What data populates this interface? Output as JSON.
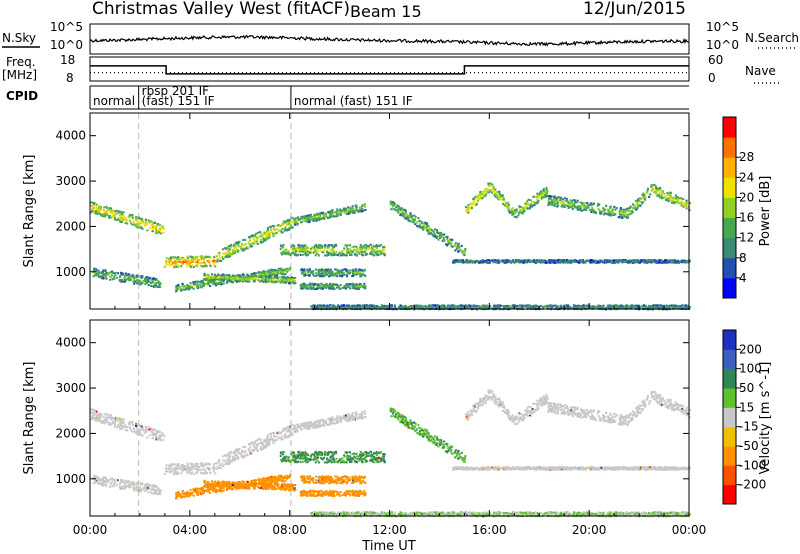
{
  "header": {
    "title": "Christmas Valley West (fitACF)",
    "beam": "Beam 15",
    "date": "12/Jun/2015"
  },
  "chart_data": {
    "type": "heatmap",
    "x_axis": {
      "label": "Time UT",
      "range_hours": [
        0,
        24
      ],
      "ticks": [
        "00:00",
        "04:00",
        "08:00",
        "12:00",
        "16:00",
        "20:00",
        "00:00"
      ],
      "tick_hours": [
        0,
        4,
        8,
        12,
        16,
        20,
        24
      ]
    },
    "y_axis": {
      "label": "Slant Range [km]",
      "range_km": [
        180,
        4500
      ],
      "ticks": [
        1000,
        2000,
        3000,
        4000
      ]
    },
    "noise_panel": {
      "left_label": "N.Sky",
      "right_label": "N.Search",
      "tick_labels": [
        "10^5",
        "10^0"
      ],
      "tick_exponents": [
        5,
        0
      ]
    },
    "freq_panel": {
      "left_label": "Freq.",
      "left_unit": "[MHz]",
      "left_ticks": [
        18,
        8
      ],
      "right_label": "Nave",
      "right_ticks": [
        60,
        0
      ],
      "frequency_steps": [
        {
          "start": 0,
          "end": 3.05,
          "mhz": 14.7
        },
        {
          "start": 3.05,
          "end": 15.0,
          "mhz": 10.3
        },
        {
          "start": 15.0,
          "end": 24,
          "mhz": 14.7
        }
      ],
      "nave_dotted_level": 18
    },
    "cpid": {
      "label": "CPID",
      "segments": [
        {
          "start": 0.0,
          "label": "normal",
          "row": 2
        },
        {
          "start": 1.95,
          "label": "rbsp 201 IF",
          "row": 1
        },
        {
          "start": 1.95,
          "label": "(fast) 151 IF",
          "row": 2
        },
        {
          "start": 8.05,
          "label": "normal (fast) 151 IF",
          "row": 2
        }
      ],
      "dividers_hours": [
        1.95,
        8.05
      ]
    },
    "power_panel": {
      "colorbar_label": "Power [dB]",
      "colorbar_ticks": [
        4,
        8,
        12,
        16,
        20,
        24,
        28
      ],
      "colors": [
        "#0000ff",
        "#2050b0",
        "#3a8a78",
        "#48a850",
        "#90d020",
        "#f0e000",
        "#ffb000",
        "#ff7000",
        "#ff0000"
      ]
    },
    "velocity_panel": {
      "colorbar_label": "Velocity [m s^-1]",
      "colorbar_ticks": [
        "200",
        "100",
        "50",
        "15",
        "-15",
        "-50",
        "-100",
        "-200"
      ],
      "colors": [
        "#2030c0",
        "#3a60c0",
        "#308850",
        "#60c030",
        "#c8c8c8",
        "#f0c000",
        "#ff9000",
        "#ff5000",
        "#ff0000"
      ]
    },
    "scatter_bands": [
      {
        "t0": 0.0,
        "t1": 2.95,
        "r0": 2450,
        "r1": 1930,
        "w": 240,
        "p": 22,
        "v": 0
      },
      {
        "t0": 2.95,
        "t1": 5.0,
        "r0": 1220,
        "r1": 1260,
        "w": 240,
        "p": 26,
        "v": 0
      },
      {
        "t0": 5.0,
        "t1": 8.1,
        "r0": 1330,
        "r1": 2120,
        "w": 260,
        "p": 20,
        "v": 0
      },
      {
        "t0": 8.1,
        "t1": 11.0,
        "r0": 2120,
        "r1": 2450,
        "w": 160,
        "p": 16,
        "v": 0
      },
      {
        "t0": 7.6,
        "t1": 11.8,
        "r0": 1500,
        "r1": 1500,
        "w": 240,
        "p": 18,
        "v": 35
      },
      {
        "t0": 12.0,
        "t1": 15.0,
        "r0": 2500,
        "r1": 1450,
        "w": 200,
        "p": 16,
        "v": 25
      },
      {
        "t0": 0.1,
        "t1": 2.8,
        "r0": 1000,
        "r1": 760,
        "w": 200,
        "p": 14,
        "v": 0
      },
      {
        "t0": 3.4,
        "t1": 8.0,
        "r0": 660,
        "r1": 1060,
        "w": 150,
        "p": 16,
        "v": -40
      },
      {
        "t0": 4.5,
        "t1": 8.2,
        "r0": 910,
        "r1": 830,
        "w": 140,
        "p": 18,
        "v": -40
      },
      {
        "t0": 8.4,
        "t1": 11.0,
        "r0": 1000,
        "r1": 1000,
        "w": 160,
        "p": 14,
        "v": -40
      },
      {
        "t0": 8.4,
        "t1": 11.0,
        "r0": 700,
        "r1": 700,
        "w": 120,
        "p": 14,
        "v": -40
      },
      {
        "t0": 15.0,
        "t1": 16.0,
        "r0": 2350,
        "r1": 2900,
        "w": 220,
        "p": 22,
        "v": 0
      },
      {
        "t0": 16.0,
        "t1": 17.0,
        "r0": 2900,
        "r1": 2300,
        "w": 220,
        "p": 20,
        "v": 0
      },
      {
        "t0": 17.0,
        "t1": 18.3,
        "r0": 2300,
        "r1": 2800,
        "w": 220,
        "p": 18,
        "v": 0
      },
      {
        "t0": 18.3,
        "t1": 21.5,
        "r0": 2600,
        "r1": 2300,
        "w": 220,
        "p": 16,
        "v": 0
      },
      {
        "t0": 21.5,
        "t1": 22.5,
        "r0": 2300,
        "r1": 2850,
        "w": 220,
        "p": 18,
        "v": 0
      },
      {
        "t0": 22.5,
        "t1": 24.0,
        "r0": 2850,
        "r1": 2450,
        "w": 220,
        "p": 20,
        "v": 0
      },
      {
        "t0": 14.5,
        "t1": 24.0,
        "r0": 1250,
        "r1": 1250,
        "w": 60,
        "p": 10,
        "v": 0
      },
      {
        "t0": 8.8,
        "t1": 24.0,
        "r0": 240,
        "r1": 240,
        "w": 90,
        "p": 12,
        "v": 15
      }
    ]
  }
}
